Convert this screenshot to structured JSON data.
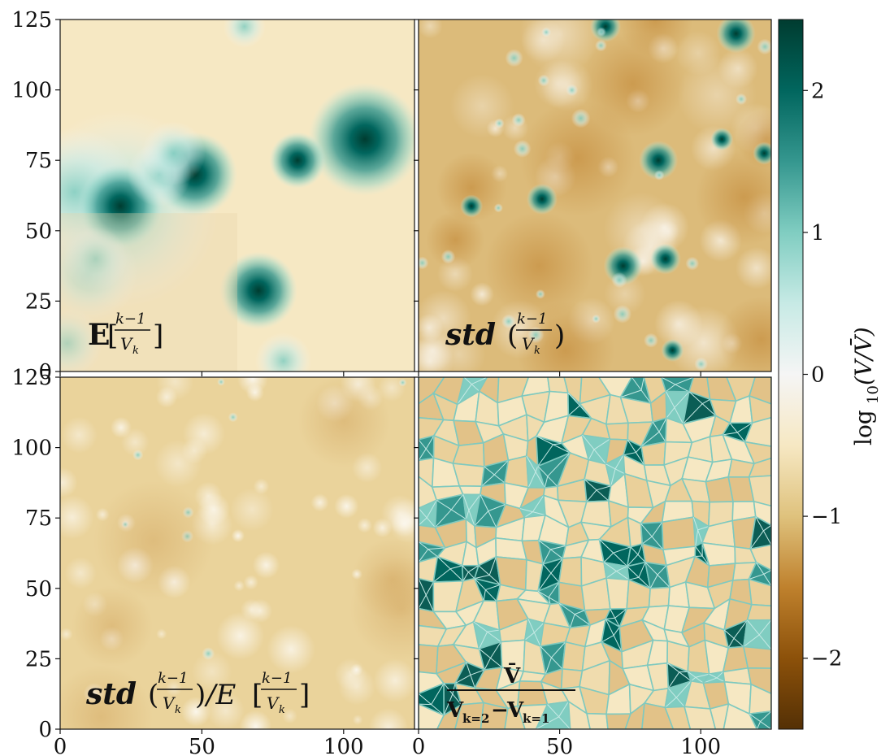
{
  "chart_data": {
    "type": "heatmap",
    "panels": [
      {
        "label": "E[(k−1)/V_k]",
        "x_range": [
          0,
          125
        ],
        "y_range": [
          0,
          125
        ],
        "texture": "smooth"
      },
      {
        "label": "std((k−1)/V_k)",
        "x_range": [
          0,
          125
        ],
        "y_range": [
          0,
          125
        ],
        "texture": "smooth"
      },
      {
        "label": "std((k−1)/V_k)/E[(k−1)/V_k]",
        "x_range": [
          0,
          125
        ],
        "y_range": [
          0,
          125
        ],
        "texture": "smooth"
      },
      {
        "label": "V̄ / (V_{k=2} − V_{k=1})",
        "x_range": [
          0,
          125
        ],
        "y_range": [
          0,
          125
        ],
        "texture": "voronoi"
      }
    ],
    "x_ticks": [
      "0",
      "50",
      "100"
    ],
    "y_ticks": [
      "0",
      "25",
      "50",
      "75",
      "100",
      "125"
    ],
    "colorbar": {
      "label": "log10(V/V̄)",
      "range": [
        -2.5,
        2.5
      ],
      "ticks": [
        "−2",
        "−1",
        "0",
        "1",
        "2"
      ],
      "colormap": "BrBG",
      "colors": [
        "#543005",
        "#8c510a",
        "#bf812d",
        "#dfc27d",
        "#f6e8c3",
        "#f5f5f5",
        "#c7eae5",
        "#80cdc1",
        "#35978f",
        "#01665e",
        "#003c30"
      ]
    }
  },
  "labels": {
    "p1": {
      "main": "E",
      "num": "k−1",
      "den": "V",
      "sub": "k"
    },
    "p2": {
      "main": "std",
      "num": "k−1",
      "den": "V",
      "sub": "k"
    },
    "p3": {
      "main": "std",
      "num": "k−1",
      "den": "V",
      "sub": "k",
      "mid": "/E"
    },
    "p4": {
      "num": "V̄",
      "den": "V",
      "den2": "V"
    },
    "cbar": {
      "main": "log",
      "sub": "10",
      "rest": "(V/V̄)"
    }
  }
}
